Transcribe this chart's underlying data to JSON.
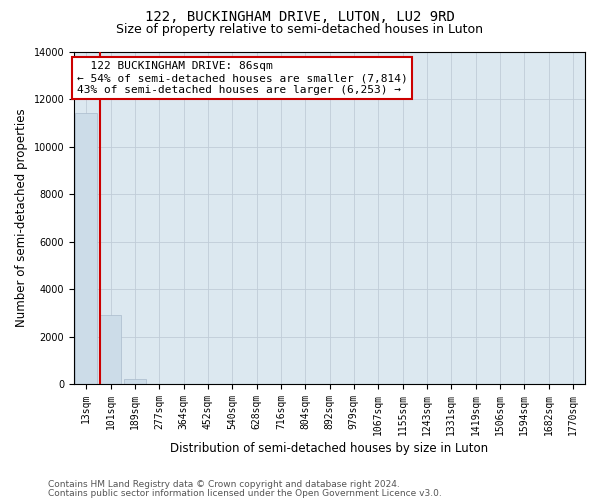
{
  "title": "122, BUCKINGHAM DRIVE, LUTON, LU2 9RD",
  "subtitle": "Size of property relative to semi-detached houses in Luton",
  "xlabel": "Distribution of semi-detached houses by size in Luton",
  "ylabel": "Number of semi-detached properties",
  "footnote1": "Contains HM Land Registry data © Crown copyright and database right 2024.",
  "footnote2": "Contains public sector information licensed under the Open Government Licence v3.0.",
  "annotation_line1": "  122 BUCKINGHAM DRIVE: 86sqm  ",
  "annotation_line2": "← 54% of semi-detached houses are smaller (7,814)",
  "annotation_line3": "43% of semi-detached houses are larger (6,253) →",
  "categories": [
    "13sqm",
    "101sqm",
    "189sqm",
    "277sqm",
    "364sqm",
    "452sqm",
    "540sqm",
    "628sqm",
    "716sqm",
    "804sqm",
    "892sqm",
    "979sqm",
    "1067sqm",
    "1155sqm",
    "1243sqm",
    "1331sqm",
    "1419sqm",
    "1506sqm",
    "1594sqm",
    "1682sqm",
    "1770sqm"
  ],
  "values": [
    11400,
    2900,
    200,
    15,
    5,
    2,
    1,
    0,
    0,
    0,
    0,
    0,
    0,
    0,
    0,
    0,
    0,
    0,
    0,
    0,
    0
  ],
  "bar_color": "#ccdce8",
  "bar_edge_color": "#aabbcc",
  "vline_color": "#cc0000",
  "vline_x": 0.55,
  "ylim": [
    0,
    14000
  ],
  "yticks": [
    0,
    2000,
    4000,
    6000,
    8000,
    10000,
    12000,
    14000
  ],
  "bg_color": "#ffffff",
  "plot_bg_color": "#dce8f0",
  "grid_color": "#c0ccd8",
  "annotation_box_color": "#cc0000",
  "title_fontsize": 10,
  "subtitle_fontsize": 9,
  "axis_label_fontsize": 8.5,
  "tick_fontsize": 7,
  "annotation_fontsize": 8,
  "footnote_fontsize": 6.5
}
